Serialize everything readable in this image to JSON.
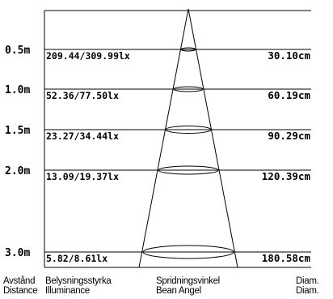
{
  "rows": [
    {
      "distance": "0.5m",
      "illuminance": "209.44/309.99lx",
      "diameter": "30.10cm"
    },
    {
      "distance": "1.0m",
      "illuminance": "52.36/77.50lx",
      "diameter": "60.19cm"
    },
    {
      "distance": "1.5m",
      "illuminance": "23.27/34.44lx",
      "diameter": "90.29cm"
    },
    {
      "distance": "2.0m",
      "illuminance": "13.09/19.37lx",
      "diameter": "120.39cm"
    },
    {
      "distance": "3.0m",
      "illuminance": "5.82/8.61lx",
      "diameter": "180.58cm"
    }
  ],
  "footer": {
    "distance_sv": "Avstånd",
    "distance_en": "Distance",
    "illuminance_sv": "Belysningsstyrka",
    "illuminance_en": "Illuminance",
    "angle_sv": "Spridningsvinkel",
    "angle_en": "Bean Angel",
    "diam_sv": "Diam.",
    "diam_en": "Diam."
  }
}
